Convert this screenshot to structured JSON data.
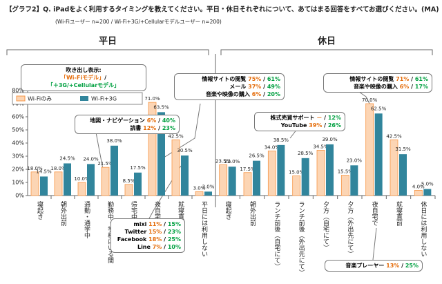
{
  "title": "【グラフ2】Q. iPadをよく利用するタイミングを教えてください。平日・休日それぞれについて、あてはまる回答をすべてお選びください。(MA)",
  "subtitle": "(Wi-Fiユーザー n=200 / Wi-Fi+3G/+Cellularモデルユーザー n=200)",
  "separator": "/",
  "callouts": [
    {
      "title": "吹き出し表示:",
      "wifi": "「Wi-Fiモデル」",
      "cell": "「＋3G/+Cellularモデル」"
    },
    {
      "items": [
        {
          "label": "地図・ナビゲーション",
          "wifi": "6%",
          "cell": "40%"
        },
        {
          "label": "読書",
          "wifi": "12%",
          "cell": "23%"
        }
      ]
    },
    {
      "items": [
        {
          "label": "情報サイトの閲覧",
          "wifi": "75%",
          "cell": "61%"
        },
        {
          "label": "メール",
          "wifi": "37%",
          "cell": "49%"
        },
        {
          "label": "音楽や映像の購入",
          "wifi": "6%",
          "cell": "20%"
        }
      ]
    },
    {
      "items": [
        {
          "label": "mixi",
          "wifi": "11%",
          "cell": "15%"
        },
        {
          "label": "Twitter",
          "wifi": "15%",
          "cell": "23%"
        },
        {
          "label": "Facebook",
          "wifi": "18%",
          "cell": "25%"
        },
        {
          "label": "Line",
          "wifi": "7%",
          "cell": "10%"
        }
      ]
    },
    {
      "items": [
        {
          "label": "株式売買サポート",
          "wifi": "－",
          "cell": "12%"
        },
        {
          "label": "YouTube",
          "wifi": "39%",
          "cell": "26%"
        }
      ]
    },
    {
      "items": [
        {
          "label": "情報サイトの閲覧",
          "wifi": "71%",
          "cell": "61%"
        },
        {
          "label": "音楽や映像の購入",
          "wifi": "6%",
          "cell": "17%"
        }
      ]
    },
    {
      "items": [
        {
          "label": "音楽プレーヤー",
          "wifi": "13%",
          "cell": "25%"
        }
      ]
    }
  ],
  "chart_data": [
    {
      "type": "bar",
      "title": "平日",
      "categories": [
        "寝起き",
        "朝外出前",
        "通勤・通学中",
        "勤務中・学校にいる間",
        "帰宅中",
        "夜自宅で",
        "就寝直前",
        "平日には利用しない"
      ],
      "series": [
        {
          "name": "Wi-Fiのみ",
          "color": "#fcd5b4",
          "label_color": "#e46c0a",
          "values": [
            18.0,
            18.0,
            10.0,
            21.5,
            8.5,
            71.0,
            42.5,
            3.0
          ],
          "value_labels": [
            "18.0%",
            "18.0%",
            "10.0%",
            "21.5%",
            "8.5%",
            "71.0%",
            "42.5%",
            "3.0%"
          ]
        },
        {
          "name": "Wi-Fi+3G",
          "color": "#31859c",
          "label_color": "#31859c",
          "values": [
            14.5,
            24.5,
            24.0,
            38.0,
            17.5,
            63.5,
            30.5,
            3.0
          ],
          "value_labels": [
            "14.5%",
            "24.5%",
            "24.0%",
            "38.0%",
            "17.5%",
            "63.5%",
            "30.5%",
            "3.0%"
          ]
        }
      ],
      "ylim": [
        0,
        80
      ],
      "yticks": [
        {
          "value": 0,
          "label": "0%"
        },
        {
          "value": 10,
          "label": "10%"
        },
        {
          "value": 20,
          "label": "20%"
        },
        {
          "value": 30,
          "label": "30%"
        },
        {
          "value": 40,
          "label": "40%"
        },
        {
          "value": 50,
          "label": "50%"
        },
        {
          "value": 60,
          "label": "60%"
        },
        {
          "value": 70,
          "label": "70%"
        },
        {
          "value": 80,
          "label": "80%"
        }
      ],
      "legend": "upper left"
    },
    {
      "type": "bar",
      "title": "休日",
      "categories": [
        "寝起き",
        "朝外出前",
        "ランチ前後（自宅にて）",
        "ランチ前後（外出先にて）",
        "夕方（自宅にて）",
        "夕方（外出先にて）",
        "夜自宅で",
        "就寝直前",
        "休日には利用しない"
      ],
      "series": [
        {
          "color": "#fcd5b4",
          "label_color": "#e46c0a",
          "values": [
            23.5,
            17.5,
            34.0,
            15.0,
            34.5,
            15.5,
            70.0,
            42.5,
            4.0
          ],
          "value_labels": [
            "23.5%",
            "17.5%",
            "34.0%",
            "15.0%",
            "34.5%",
            "15.5%",
            "70.0%",
            "42.5%",
            "4.0%"
          ]
        },
        {
          "color": "#31859c",
          "label_color": "#31859c",
          "values": [
            22.0,
            26.5,
            38.5,
            28.5,
            39.0,
            23.0,
            62.5,
            31.5,
            5.0
          ],
          "value_labels": [
            "22.0%",
            "26.5%",
            "38.5%",
            "28.5%",
            "39.0%",
            "23.0%",
            "62.5%",
            "31.5%",
            "5.0%"
          ]
        }
      ],
      "ylim": [
        0,
        80
      ]
    }
  ]
}
